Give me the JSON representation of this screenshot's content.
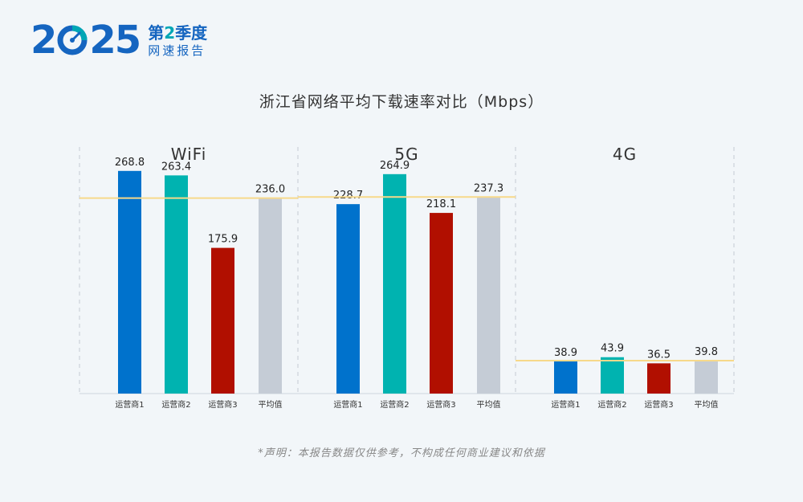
{
  "logo": {
    "year_a": "2",
    "year_b": "25",
    "quarter_prefix": "第",
    "quarter_num": "2",
    "quarter_suffix": "季度",
    "report": "网速报告"
  },
  "title": "浙江省网络平均下载速率对比（Mbps）",
  "disclaimer": "*声明：本报告数据仅供参考，不构成任何商业建议和依据",
  "colors": {
    "operator1": "#0072cc",
    "operator2": "#00b3b0",
    "operator3": "#b10f00",
    "average": "#c5ccd6",
    "average_line": "#f7d98a"
  },
  "chart_data": [
    {
      "type": "bar",
      "group": "WiFi",
      "categories": [
        "运营商1",
        "运营商2",
        "运营商3",
        "平均值"
      ],
      "values": [
        268.8,
        263.4,
        175.9,
        236.0
      ],
      "labels": [
        "268.8",
        "263.4",
        "175.9",
        "236.0"
      ],
      "average": 236.0,
      "ylim": [
        0,
        320
      ]
    },
    {
      "type": "bar",
      "group": "5G",
      "categories": [
        "运营商1",
        "运营商2",
        "运营商3",
        "平均值"
      ],
      "values": [
        228.7,
        264.9,
        218.1,
        237.3
      ],
      "labels": [
        "228.7",
        "264.9",
        "218.1",
        "237.3"
      ],
      "average": 237.3,
      "ylim": [
        0,
        320
      ]
    },
    {
      "type": "bar",
      "group": "4G",
      "categories": [
        "运营商1",
        "运营商2",
        "运营商3",
        "平均值"
      ],
      "values": [
        38.9,
        43.9,
        36.5,
        39.8
      ],
      "labels": [
        "38.9",
        "43.9",
        "36.5",
        "39.8"
      ],
      "average": 39.8,
      "ylim": [
        0,
        320
      ]
    }
  ]
}
